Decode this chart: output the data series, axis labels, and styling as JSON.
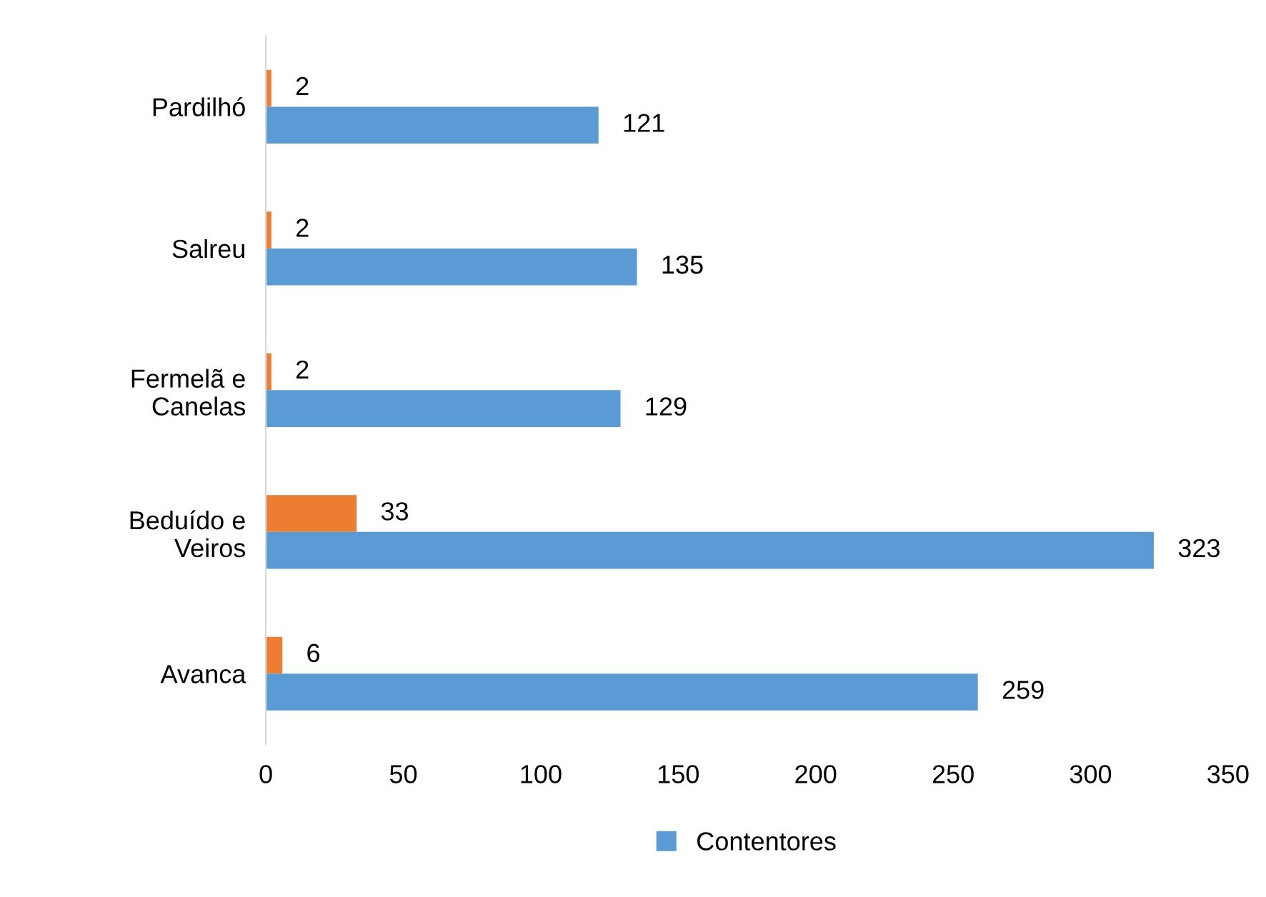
{
  "chart_data": {
    "type": "bar",
    "orientation": "horizontal",
    "categories": [
      "Pardilhó",
      "Salreu",
      "Fermelã e\nCanelas",
      "Beduído e\nVeiros",
      "Avanca"
    ],
    "series": [
      {
        "color": "#ed7d31",
        "values": [
          2,
          2,
          2,
          33,
          6
        ]
      },
      {
        "name": "Contentores",
        "color": "#5b9bd5",
        "values": [
          121,
          135,
          129,
          323,
          259
        ]
      }
    ],
    "xlim": [
      0,
      350
    ],
    "xticks": [
      0,
      50,
      100,
      150,
      200,
      250,
      300,
      350
    ],
    "data_labels": true,
    "grid": false,
    "legend": "bottom"
  }
}
